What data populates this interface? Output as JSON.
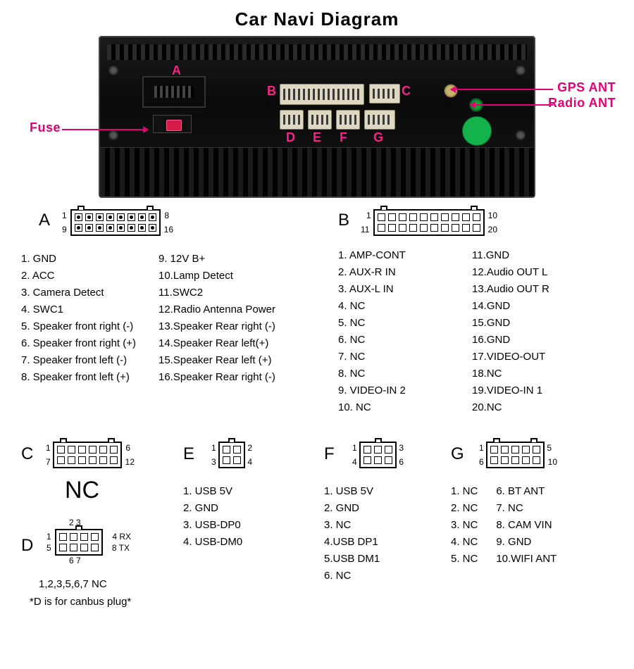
{
  "title": "Car Navi Diagram",
  "photo": {
    "labels": {
      "fuse": "Fuse",
      "gps": "GPS ANT",
      "radio": "Radio ANT",
      "letters": [
        "A",
        "B",
        "C",
        "D",
        "E",
        "F",
        "G"
      ]
    },
    "colors": {
      "arrow": "#e60073",
      "letter": "#ff1e8c",
      "chassis_bg": "#0a0a0a",
      "connector_bg": "#ded7c1",
      "qc_badge": "#13b24a",
      "fuse_fill": "#d61a4a"
    }
  },
  "connectors": {
    "A": {
      "rows": 2,
      "cols": 8,
      "corners": {
        "tl": "1",
        "tr": "8",
        "bl": "9",
        "br": "16"
      },
      "list": [
        "1. GND",
        "2. ACC",
        "3. Camera Detect",
        "4. SWC1",
        "5. Speaker front right (-)",
        "6. Speaker front right (+)",
        "7. Speaker front left (-)",
        "8. Speaker front left (+)"
      ],
      "list2": [
        "9.  12V B+",
        "10.Lamp Detect",
        "11.SWC2",
        "12.Radio Antenna Power",
        "13.Speaker Rear right (-)",
        "14.Speaker Rear left(+)",
        "15.Speaker Rear left (+)",
        "16.Speaker Rear right (-)"
      ]
    },
    "B": {
      "rows": 2,
      "cols": 10,
      "corners": {
        "tl": "1",
        "tr": "10",
        "bl": "11",
        "br": "20"
      },
      "list": [
        "1.  AMP-CONT",
        "2.  AUX-R IN",
        "3.  AUX-L IN",
        "4.  NC",
        "5.  NC",
        "6.  NC",
        "7.  NC",
        "8.  NC",
        "9. VIDEO-IN 2",
        "10.  NC"
      ],
      "list2": [
        "11.GND",
        "12.Audio OUT  L",
        "13.Audio OUT  R",
        "14.GND",
        "15.GND",
        "16.GND",
        "17.VIDEO-OUT",
        "18.NC",
        "19.VIDEO-IN 1",
        "20.NC"
      ]
    },
    "C": {
      "rows": 2,
      "cols": 6,
      "corners": {
        "tl": "1",
        "tr": "6",
        "bl": "7",
        "br": "12"
      },
      "big": "NC"
    },
    "D": {
      "rows": 2,
      "cols": 4,
      "corner_text": {
        "tl": "1",
        "tr": "4 RX",
        "bl": "5",
        "br": "8 TX",
        "top_mid": "2 3",
        "bot_mid": "6 7"
      },
      "note1": "1,2,3,5,6,7  NC",
      "note2": "*D is for canbus plug*"
    },
    "E": {
      "rows": 2,
      "cols": 2,
      "corners": {
        "tl": "1",
        "tr": "2",
        "bl": "3",
        "br": "4"
      },
      "list": [
        "1. USB 5V",
        "2. GND",
        "3. USB-DP0",
        "4. USB-DM0"
      ]
    },
    "F": {
      "rows": 2,
      "cols": 3,
      "corners": {
        "tl": "1",
        "tr": "3",
        "bl": "4",
        "br": "6"
      },
      "list": [
        "1. USB 5V",
        "2. GND",
        "3. NC",
        "4.USB DP1",
        "5.USB DM1",
        "6. NC"
      ]
    },
    "G": {
      "rows": 2,
      "cols": 5,
      "corners": {
        "tl": "1",
        "tr": "5",
        "bl": "6",
        "br": "10"
      },
      "list": [
        "1. NC",
        "2. NC",
        "3. NC",
        "4. NC",
        "5. NC"
      ],
      "list2": [
        "6.  BT ANT",
        "7.  NC",
        "8.  CAM VIN",
        "9.  GND",
        "10.WIFI ANT"
      ]
    }
  }
}
